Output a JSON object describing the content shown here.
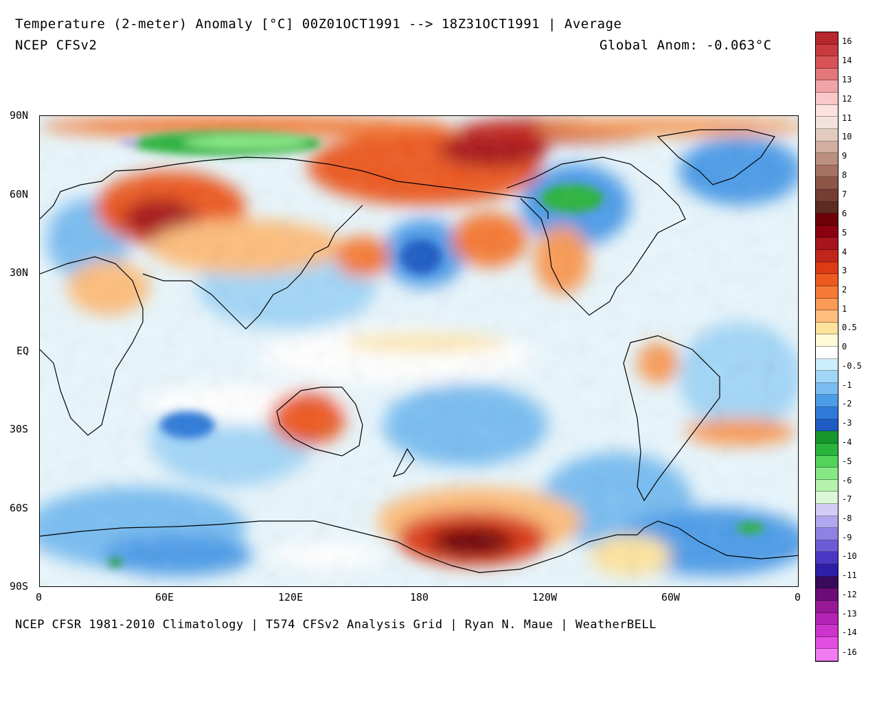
{
  "header": {
    "title": "Temperature (2-meter) Anomaly  [°C] 00Z01OCT1991 --> 18Z31OCT1991 | Average",
    "model": "NCEP CFSv2",
    "global_anomaly": "Global Anom: -0.063°C"
  },
  "footer": "NCEP CFSR 1981-2010 Climatology | T574 CFSv2 Analysis Grid | Ryan N. Maue | WeatherBELL",
  "map": {
    "projection": "equirectangular, centered on 180",
    "lat_labels": [
      "90N",
      "60N",
      "30N",
      "EQ",
      "30S",
      "60S",
      "90S"
    ],
    "lon_labels": [
      "0",
      "60E",
      "120E",
      "180",
      "120W",
      "60W",
      "0"
    ],
    "anomaly_regions": [
      {
        "label": "Siberia / Ural warm",
        "value": 6
      },
      {
        "label": "Arctic Alaska warm",
        "value": 6
      },
      {
        "label": "Ross Sea / Antarctic warm",
        "value": 7
      },
      {
        "label": "Canada cold",
        "value": -4
      },
      {
        "label": "Kara Sea cold",
        "value": -5
      },
      {
        "label": "North Pacific warm",
        "value": 2
      },
      {
        "label": "Australia warm",
        "value": 2
      },
      {
        "label": "Antarctic Atlantic cold",
        "value": -3
      }
    ]
  },
  "colorbar": {
    "labels": [
      "16",
      "14",
      "13",
      "12",
      "11",
      "10",
      "9",
      "8",
      "7",
      "6",
      "5",
      "4",
      "3",
      "2",
      "1",
      "0.5",
      "0",
      "-0.5",
      "-1",
      "-2",
      "-3",
      "-4",
      "-5",
      "-6",
      "-7",
      "-8",
      "-9",
      "-10",
      "-11",
      "-12",
      "-13",
      "-14",
      "-16"
    ],
    "colors": [
      "#b8262e",
      "#c83a3e",
      "#d85358",
      "#e3777a",
      "#f0a4a6",
      "#f8c8c8",
      "#fbe2de",
      "#f2e4dc",
      "#e4cbc0",
      "#d2aea0",
      "#bb9080",
      "#a67262",
      "#8e5647",
      "#763d32",
      "#5e2a22",
      "#6d0008",
      "#8a0010",
      "#a8141b",
      "#c2261a",
      "#dc3b16",
      "#ec5a20",
      "#f57a36",
      "#f99a55",
      "#fdbd7c",
      "#fde39e",
      "#fffad8",
      "#ffffff",
      "#cdeefc",
      "#a2d6f7",
      "#79bdf1",
      "#4d9ce8",
      "#2f7ad9",
      "#1e5cc4",
      "#16962c",
      "#2bb43c",
      "#52d45a",
      "#86e884",
      "#b5f2ae",
      "#dbf8d6",
      "#d3cdf6",
      "#b0a8ee",
      "#8e82e3",
      "#6c5cd6",
      "#4a38c4",
      "#2e1ea8",
      "#3a0a5a",
      "#6c0c76",
      "#961a96",
      "#b424b4",
      "#cc34cc",
      "#e24ee2",
      "#f27af2"
    ]
  }
}
